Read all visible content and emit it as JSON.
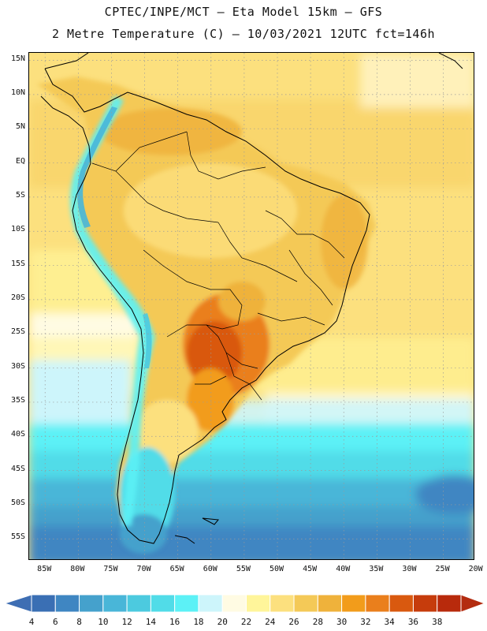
{
  "title_line1": "CPTEC/INPE/MCT –  Eta Model 15km – GFS",
  "title_line2": "2 Metre Temperature (C) – 10/03/2021 12UTC fct=146h",
  "lat_labels": [
    "15N",
    "10N",
    "5N",
    "EQ",
    "5S",
    "10S",
    "15S",
    "20S",
    "25S",
    "30S",
    "35S",
    "40S",
    "45S",
    "50S",
    "55S"
  ],
  "lat_values": [
    15,
    10,
    5,
    0,
    -5,
    -10,
    -15,
    -20,
    -25,
    -30,
    -35,
    -40,
    -45,
    -50,
    -55
  ],
  "lon_labels": [
    "85W",
    "80W",
    "75W",
    "70W",
    "65W",
    "60W",
    "55W",
    "50W",
    "45W",
    "40W",
    "35W",
    "30W",
    "25W",
    "20W"
  ],
  "lon_values": [
    -85,
    -80,
    -75,
    -70,
    -65,
    -60,
    -55,
    -50,
    -45,
    -40,
    -35,
    -30,
    -25,
    -20
  ],
  "colorbar": {
    "labels": [
      "4",
      "6",
      "8",
      "10",
      "12",
      "14",
      "16",
      "18",
      "20",
      "22",
      "24",
      "26",
      "28",
      "30",
      "32",
      "34",
      "36",
      "38"
    ],
    "colors": [
      "#3a6fb4",
      "#3f86c2",
      "#45a1cc",
      "#49b6d8",
      "#4ccadf",
      "#51dce8",
      "#5cf1f6",
      "#cdf5fb",
      "#fffbe3",
      "#fff59a",
      "#fce07e",
      "#f4c957",
      "#efb23b",
      "#f29c1b",
      "#ea7f1c",
      "#d9590f",
      "#c63c0c",
      "#b82a0c"
    ],
    "low_color": "#3e6eb3",
    "high_color": "#b32c10"
  }
}
